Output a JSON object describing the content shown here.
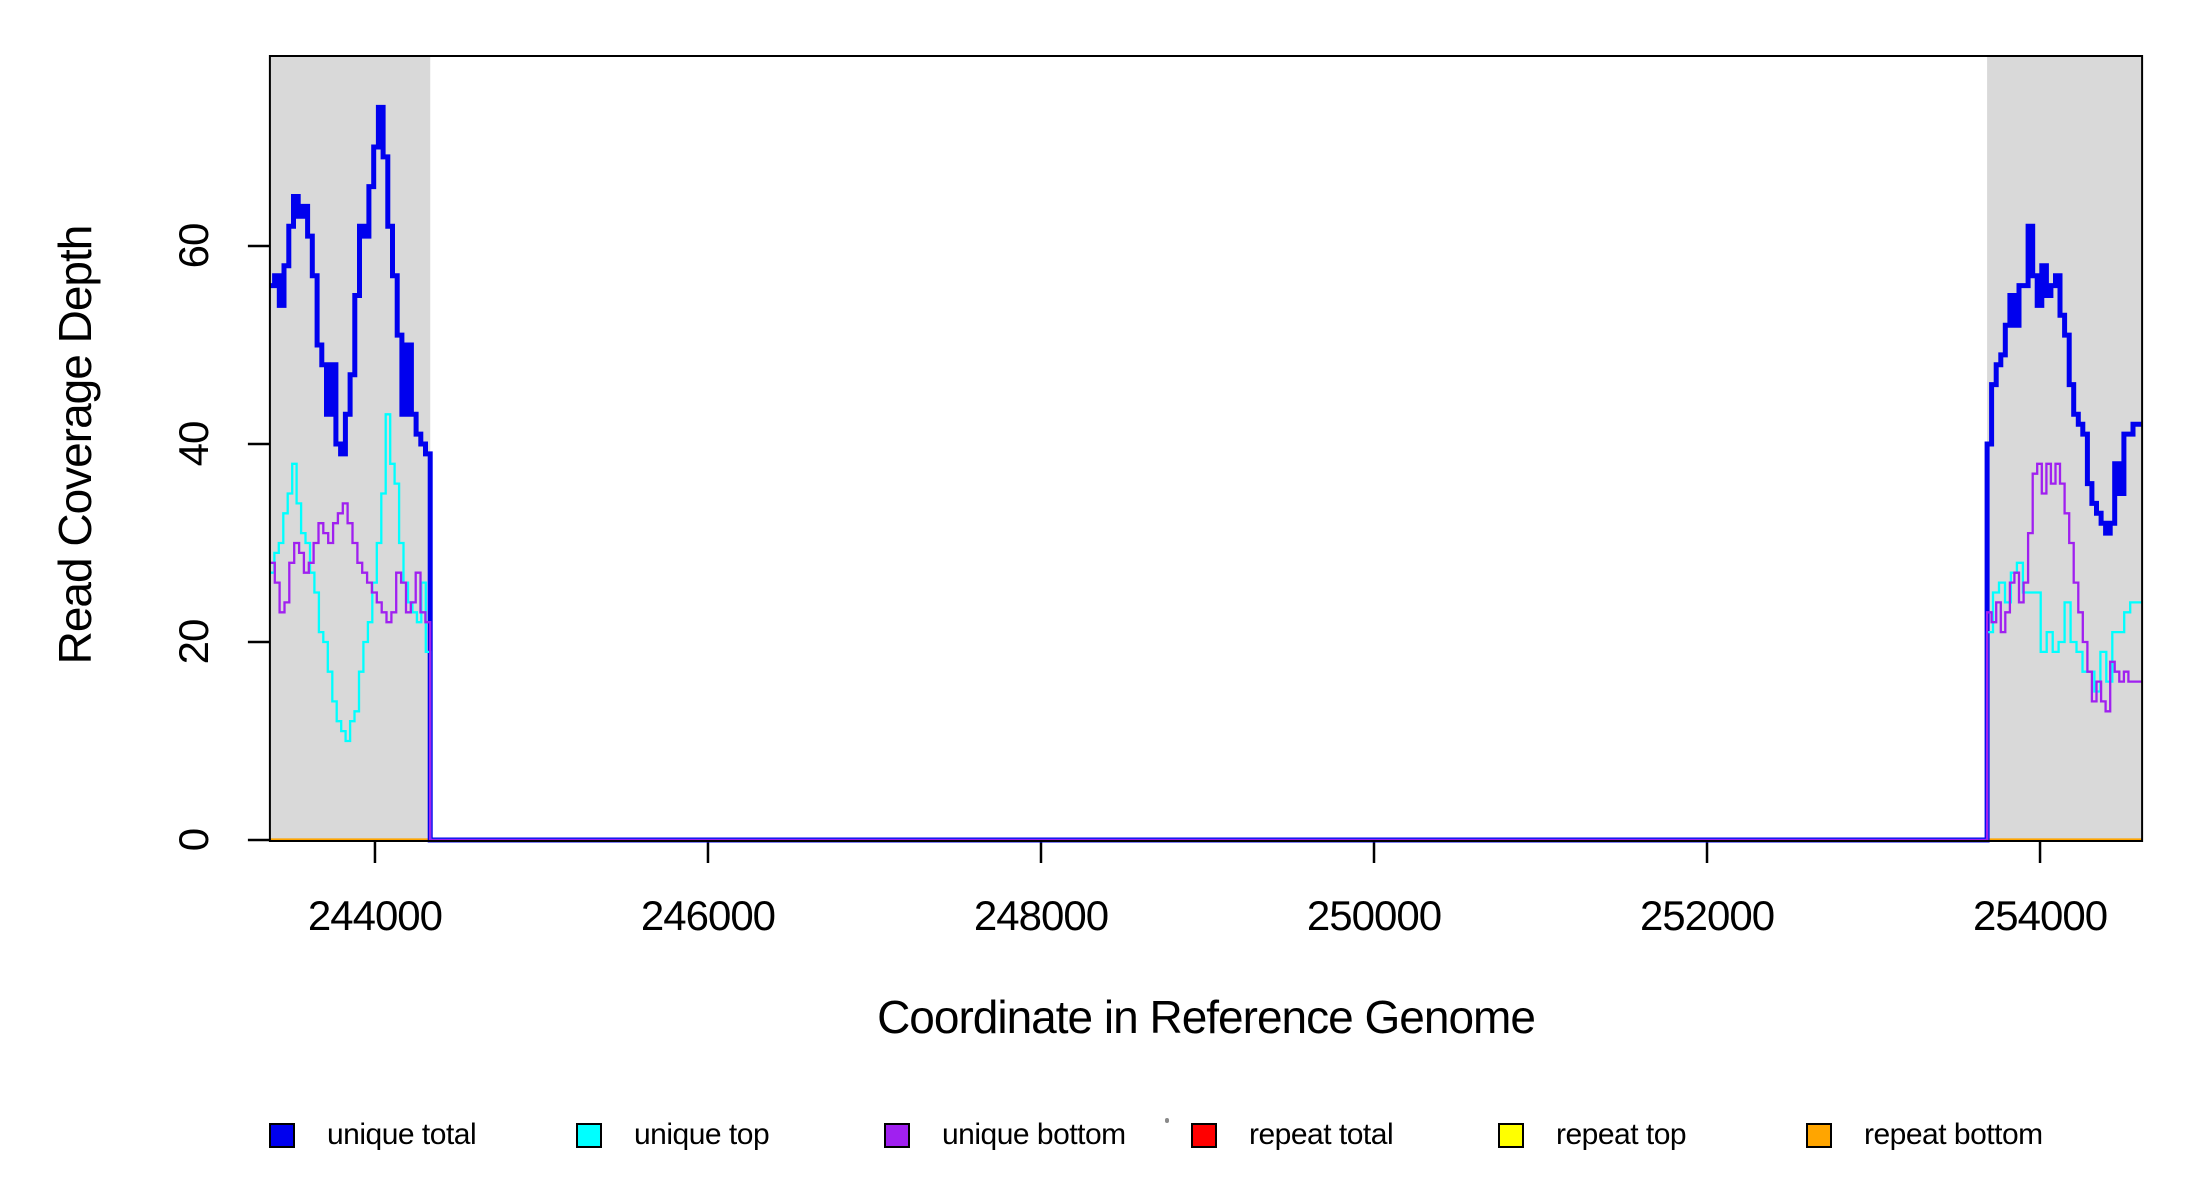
{
  "axes": {
    "x_label": "Coordinate in Reference Genome",
    "y_label": "Read Coverage Depth"
  },
  "legend": {
    "items": [
      {
        "label": "unique total",
        "color": "#0000EE"
      },
      {
        "label": "unique top",
        "color": "#00FFFF"
      },
      {
        "label": "unique bottom",
        "color": "#A020F0"
      },
      {
        "label": "repeat total",
        "color": "#FF0000"
      },
      {
        "label": "repeat top",
        "color": "#FFFF00"
      },
      {
        "label": "repeat bottom",
        "color": "#FFA500"
      }
    ]
  },
  "chart_data": {
    "type": "line",
    "subtype": "step-coverage",
    "title": "",
    "xlabel": "Coordinate in Reference Genome",
    "ylabel": "Read Coverage Depth",
    "xlim": [
      243369,
      254613
    ],
    "ylim": [
      0,
      79
    ],
    "x_ticks": [
      244000,
      246000,
      248000,
      250000,
      252000,
      254000
    ],
    "y_ticks": [
      0,
      20,
      40,
      60
    ],
    "grid": false,
    "legend_position": "bottom",
    "highlight_regions": [
      {
        "name": "left-target-region",
        "x0": 243369,
        "x1": 244332,
        "color": "#D9D9D9"
      },
      {
        "name": "right-target-region",
        "x0": 253682,
        "x1": 254613,
        "color": "#D9D9D9"
      }
    ],
    "series": [
      {
        "name": "unique total",
        "color": "#0000EE",
        "width": 5,
        "segments": [
          {
            "x0": 243369,
            "x1": 244332,
            "values": [
              56,
              57,
              54,
              58,
              62,
              65,
              63,
              64,
              61,
              57,
              50,
              48,
              43,
              48,
              40,
              39,
              43,
              47,
              55,
              62,
              61,
              66,
              70,
              74,
              69,
              62,
              57,
              51,
              43,
              50,
              43,
              41,
              40,
              39
            ]
          },
          {
            "x0": 253682,
            "x1": 254613,
            "values": [
              40,
              46,
              48,
              49,
              52,
              55,
              52,
              56,
              56,
              62,
              57,
              54,
              58,
              55,
              56,
              57,
              53,
              51,
              46,
              43,
              42,
              41,
              36,
              34,
              33,
              32,
              31,
              32,
              38,
              35,
              41,
              41,
              42,
              42
            ]
          }
        ]
      },
      {
        "name": "unique top",
        "color": "#00FFFF",
        "width": 2.3,
        "segments": [
          {
            "x0": 243369,
            "x1": 244332,
            "values": [
              27,
              29,
              30,
              33,
              35,
              38,
              34,
              31,
              30,
              27,
              25,
              21,
              20,
              17,
              14,
              12,
              11,
              10,
              12,
              13,
              17,
              20,
              22,
              26,
              30,
              35,
              43,
              38,
              36,
              30,
              26,
              24,
              23,
              22,
              26,
              19
            ]
          },
          {
            "x0": 253682,
            "x1": 254613,
            "values": [
              21,
              25,
              26,
              24,
              27,
              28,
              25,
              25,
              25,
              19,
              21,
              19,
              20,
              24,
              20,
              19,
              17,
              17,
              15,
              19,
              16,
              21,
              21,
              23,
              24,
              24
            ]
          }
        ]
      },
      {
        "name": "unique bottom",
        "color": "#A020F0",
        "width": 2.3,
        "segments": [
          {
            "x0": 243369,
            "x1": 244332,
            "values": [
              28,
              26,
              23,
              24,
              28,
              30,
              29,
              27,
              28,
              30,
              32,
              31,
              30,
              32,
              33,
              34,
              32,
              30,
              28,
              27,
              26,
              25,
              24,
              23,
              22,
              23,
              27,
              26,
              23,
              24,
              27,
              23,
              22
            ]
          },
          {
            "x0": 253682,
            "x1": 254613,
            "values": [
              23,
              22,
              24,
              21,
              23,
              26,
              27,
              24,
              26,
              31,
              37,
              38,
              35,
              38,
              36,
              38,
              36,
              33,
              30,
              26,
              23,
              20,
              17,
              14,
              16,
              14,
              13,
              18,
              17,
              16,
              17,
              16,
              16,
              16
            ]
          }
        ]
      },
      {
        "name": "repeat total",
        "color": "#FF0000",
        "width": 3,
        "segments": []
      },
      {
        "name": "repeat top",
        "color": "#FFFF00",
        "width": 3,
        "segments": []
      },
      {
        "name": "repeat bottom",
        "color": "#FFA500",
        "width": 3.2,
        "segments": []
      }
    ],
    "draw_order": [
      "repeat total",
      "repeat top",
      "repeat bottom",
      "unique total",
      "unique top",
      "unique bottom"
    ],
    "baseline_value": 0
  }
}
